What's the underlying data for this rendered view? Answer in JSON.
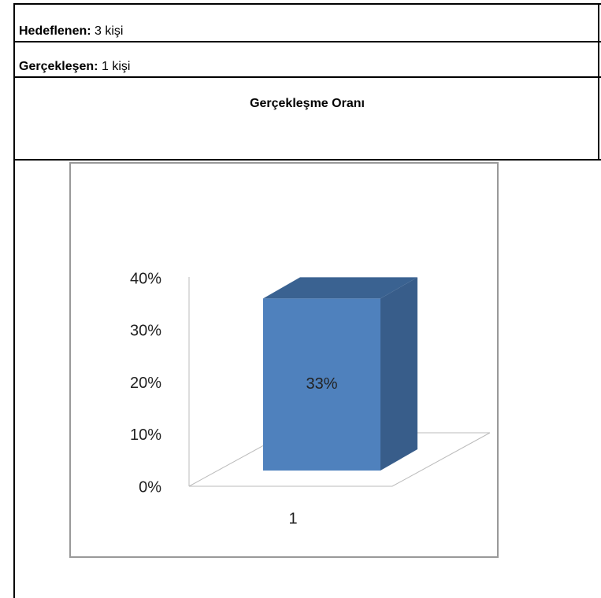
{
  "rows": [
    {
      "label": "Hedeflenen:",
      "value": "3 kişi"
    },
    {
      "label": "Gerçekleşen:",
      "value": "1 kişi"
    }
  ],
  "heading": "Gerçekleşme Oranı",
  "chart_data": {
    "type": "bar",
    "categories": [
      "1"
    ],
    "values": [
      33
    ],
    "value_labels": [
      "33%"
    ],
    "color": "#4f81bd",
    "ylim": [
      0,
      40
    ],
    "yticks": [
      {
        "value": 0,
        "label": "0%"
      },
      {
        "value": 10,
        "label": "10%"
      },
      {
        "value": 20,
        "label": "20%"
      },
      {
        "value": 30,
        "label": "30%"
      },
      {
        "value": 40,
        "label": "40%"
      }
    ]
  }
}
